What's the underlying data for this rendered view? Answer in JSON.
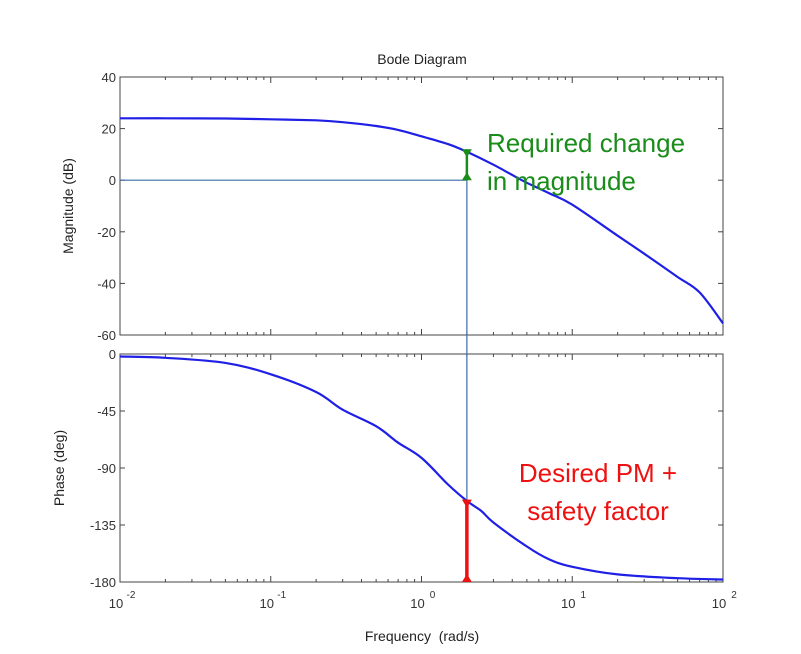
{
  "chart_data": {
    "title": "Bode Diagram",
    "xlabel": "Frequency  (rad/s)",
    "x_scale": "log",
    "x_ticks": [
      0.01,
      0.1,
      1,
      10,
      100
    ],
    "x_tick_labels": [
      {
        "base": "10",
        "exp": "-2"
      },
      {
        "base": "10",
        "exp": "-1"
      },
      {
        "base": "10",
        "exp": "0"
      },
      {
        "base": "10",
        "exp": "1"
      },
      {
        "base": "10",
        "exp": "2"
      }
    ],
    "xlim": [
      0.01,
      100
    ],
    "line_color": "#1f1fe6",
    "guide_color": "#3a6ea8",
    "panels": [
      {
        "id": "magnitude",
        "type": "line",
        "ylabel": "Magnitude (dB)",
        "ylim": [
          -60,
          40
        ],
        "y_ticks": [
          40,
          20,
          0,
          -20,
          -40,
          -60
        ],
        "x": [
          0.01,
          0.02,
          0.05,
          0.1,
          0.2,
          0.3,
          0.5,
          0.7,
          1.0,
          1.5,
          2.0,
          3.0,
          4.0,
          5.0,
          7.0,
          10,
          20,
          30,
          50,
          70,
          100
        ],
        "y": [
          24,
          24,
          23.9,
          23.6,
          23.2,
          22.5,
          21,
          19.5,
          17,
          14,
          11,
          6,
          2,
          -1,
          -5,
          -9.5,
          -21.5,
          -28.5,
          -37.5,
          -43.5,
          -55.5
        ]
      },
      {
        "id": "phase",
        "type": "line",
        "ylabel": "Phase (deg)",
        "ylim": [
          -180,
          0
        ],
        "y_ticks": [
          0,
          -45,
          -90,
          -135,
          -180
        ],
        "x": [
          0.01,
          0.02,
          0.05,
          0.1,
          0.2,
          0.3,
          0.5,
          0.7,
          1.0,
          1.5,
          2.0,
          2.5,
          3.0,
          5.0,
          7.0,
          10,
          20,
          50,
          100
        ],
        "y": [
          -2,
          -3,
          -7,
          -16,
          -30,
          -44,
          -57,
          -70,
          -82,
          -103,
          -116,
          -124,
          -133,
          -152,
          -162,
          -168,
          -174,
          -177,
          -178
        ]
      }
    ],
    "guides": {
      "x": 2.0,
      "magnitude_level": 0
    },
    "annotations": [
      {
        "id": "required-change",
        "color": "#1a8c1a",
        "lines": [
          "Required change",
          "in magnitude"
        ],
        "x": 2.0,
        "y_from": 0,
        "y_to": 12,
        "panel": "magnitude"
      },
      {
        "id": "desired-pm",
        "color": "#ee1111",
        "lines": [
          "Desired PM +",
          "safety factor"
        ],
        "x": 2.0,
        "y_from": -180,
        "y_to": -115,
        "panel": "phase"
      }
    ]
  }
}
